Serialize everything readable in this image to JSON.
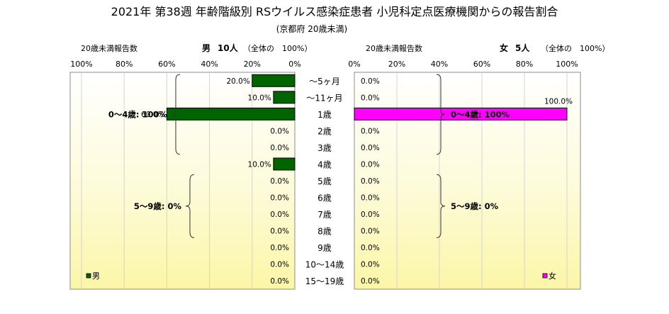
{
  "title": "2021年 第38週 年齢階級別 RSウイルス感染症患者 小児科定点医療機関からの報告割合",
  "subtitle": "(京都府 20歳未満)",
  "chart_data": {
    "type": "bar",
    "orientation": "horizontal-butterfly",
    "categories": [
      "～5ヶ月",
      "～11ヶ月",
      "1歳",
      "2歳",
      "3歳",
      "4歳",
      "5歳",
      "6歳",
      "7歳",
      "8歳",
      "9歳",
      "10～14歳",
      "15～19歳"
    ],
    "value_format": "0.0%",
    "ylim": [
      0,
      100
    ],
    "grid": true,
    "legend_position": "bottom-inner",
    "panels": [
      {
        "id": "male",
        "side": "left",
        "header_note": "20歳未満報告数",
        "header_title": "男",
        "header_count": "10人",
        "header_total": "（全体の　100%）",
        "ticks": [
          "100%",
          "80%",
          "60%",
          "40%",
          "20%",
          "0%"
        ],
        "series": [
          {
            "name": "男",
            "color": "#006400",
            "values": [
              20.0,
              10.0,
              60.0,
              0.0,
              0.0,
              10.0,
              0.0,
              0.0,
              0.0,
              0.0,
              0.0,
              0.0,
              0.0
            ]
          }
        ],
        "groups": [
          {
            "label": "0～4歳: 100%",
            "from": 0,
            "to": 5
          },
          {
            "label": "5～9歳: 0%",
            "from": 6,
            "to": 10
          }
        ]
      },
      {
        "id": "female",
        "side": "right",
        "header_note": "20歳未満報告数",
        "header_title": "女",
        "header_count": "5人",
        "header_total": "（全体の　100%）",
        "ticks": [
          "0%",
          "20%",
          "40%",
          "60%",
          "80%",
          "100%"
        ],
        "series": [
          {
            "name": "女",
            "color": "#ff00ff",
            "values": [
              0.0,
              0.0,
              100.0,
              0.0,
              0.0,
              0.0,
              0.0,
              0.0,
              0.0,
              0.0,
              0.0,
              0.0,
              0.0
            ]
          }
        ],
        "groups": [
          {
            "label": "0～4歳: 100%",
            "from": 0,
            "to": 5
          },
          {
            "label": "5～9歳: 0%",
            "from": 6,
            "to": 10
          }
        ]
      }
    ]
  }
}
